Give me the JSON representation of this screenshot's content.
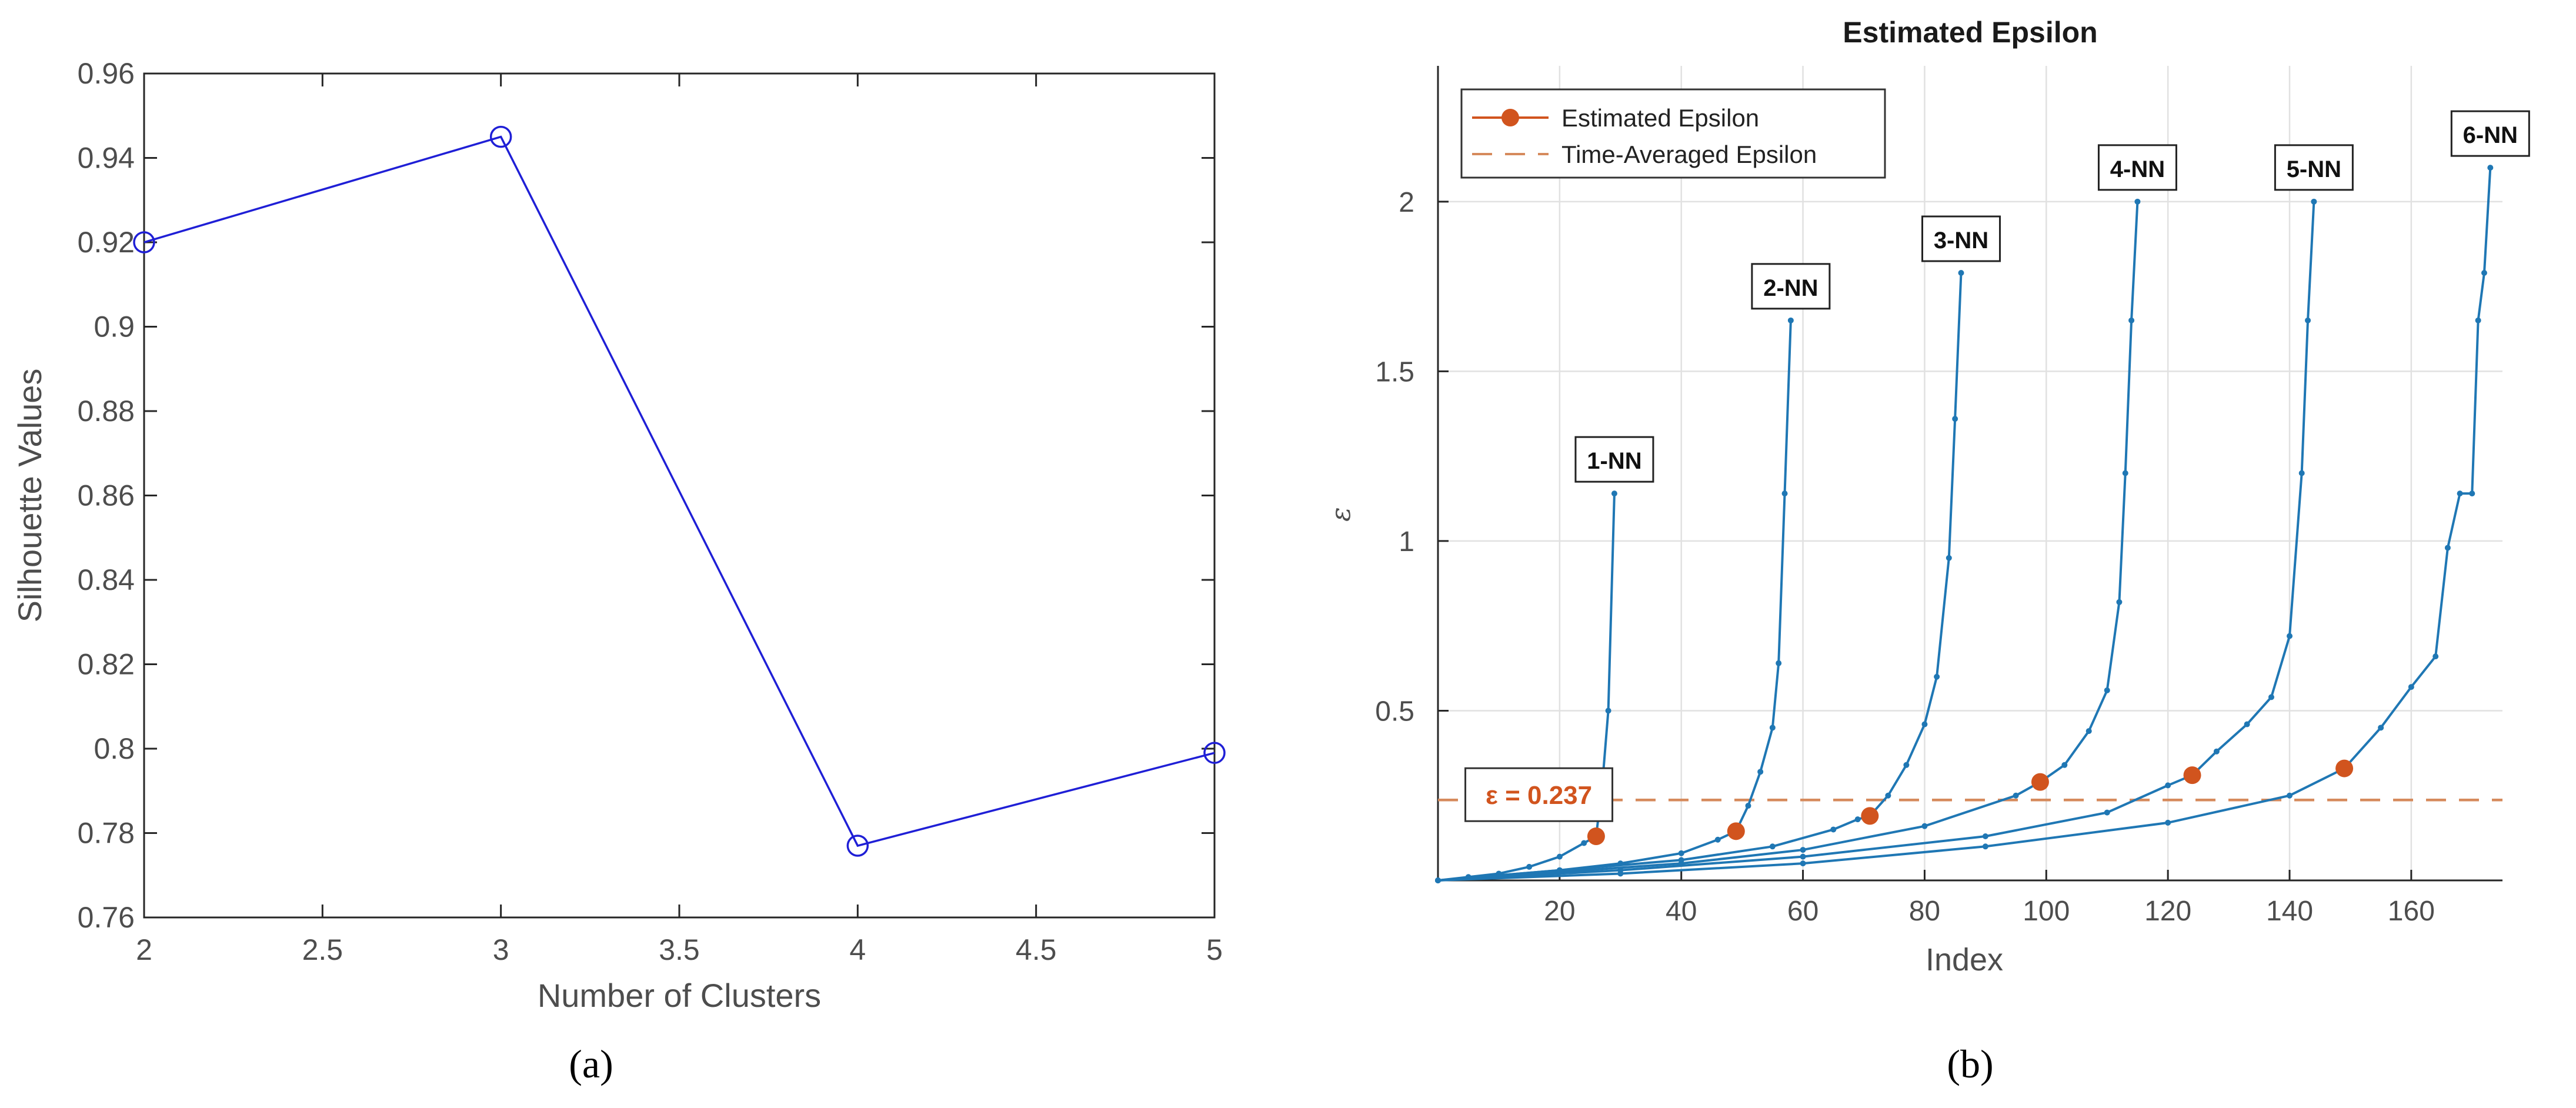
{
  "captions": {
    "a": "(a)",
    "b": "(b)"
  },
  "colors": {
    "silhouette_line": "#1f1fd6",
    "nn_curves": "#1f77b4",
    "estimated_epsilon": "#d1541e",
    "time_averaged": "#d68a5c",
    "grid": "#e1e1e1",
    "axis": "#262626",
    "tick_text": "#4d4d4d"
  },
  "chart_data": [
    {
      "type": "line",
      "panel": "a",
      "title": "",
      "xlabel": "Number of Clusters",
      "ylabel": "Silhouette Values",
      "xlim": [
        2,
        5
      ],
      "ylim": [
        0.76,
        0.96
      ],
      "grid": false,
      "xticks": [
        "2",
        "2.5",
        "3",
        "3.5",
        "4",
        "4.5",
        "5"
      ],
      "yticks": [
        "0.76",
        "0.78",
        "0.8",
        "0.82",
        "0.84",
        "0.86",
        "0.88",
        "0.9",
        "0.92",
        "0.94",
        "0.96"
      ],
      "marker": "circle",
      "series": [
        {
          "x": [
            2,
            3,
            4,
            5
          ],
          "values": [
            0.92,
            0.945,
            0.777,
            0.799
          ]
        }
      ]
    },
    {
      "type": "line",
      "panel": "b",
      "title": "Estimated Epsilon",
      "xlabel": "Index",
      "ylabel": "ε",
      "xlim": [
        0,
        175
      ],
      "ylim": [
        0,
        2.4
      ],
      "grid": true,
      "xticks": [
        "20",
        "40",
        "60",
        "80",
        "100",
        "120",
        "140",
        "160"
      ],
      "yticks": [
        "0.5",
        "1",
        "1.5",
        "2"
      ],
      "legend_position": "top-left",
      "legend": [
        "Estimated Epsilon",
        "Time-Averaged Epsilon"
      ],
      "time_averaged_epsilon": 0.237,
      "annotation": "ε = 0.237",
      "estimated_epsilon_points": {
        "x": [
          26,
          49,
          71,
          99,
          124,
          149
        ],
        "y": [
          0.13,
          0.145,
          0.19,
          0.29,
          0.31,
          0.33
        ]
      },
      "curve_labels": [
        {
          "text": "1-NN",
          "x": 29,
          "y": 1.14
        },
        {
          "text": "2-NN",
          "x": 58,
          "y": 1.65
        },
        {
          "text": "3-NN",
          "x": 86,
          "y": 1.79
        },
        {
          "text": "4-NN",
          "x": 115,
          "y": 2.0
        },
        {
          "text": "5-NN",
          "x": 144,
          "y": 2.0
        },
        {
          "text": "6-NN",
          "x": 173,
          "y": 2.1
        }
      ],
      "series": [
        {
          "x": [
            0,
            5,
            10,
            15,
            20,
            24,
            26,
            27,
            28,
            29
          ],
          "values": [
            0,
            0.01,
            0.02,
            0.04,
            0.07,
            0.11,
            0.13,
            0.28,
            0.5,
            1.14
          ]
        },
        {
          "x": [
            0,
            10,
            20,
            30,
            40,
            46,
            49,
            51,
            53,
            55,
            56,
            57,
            58
          ],
          "values": [
            0,
            0.015,
            0.03,
            0.05,
            0.08,
            0.12,
            0.145,
            0.22,
            0.32,
            0.45,
            0.64,
            1.14,
            1.65
          ]
        },
        {
          "x": [
            0,
            20,
            40,
            55,
            65,
            69,
            71,
            74,
            77,
            80,
            82,
            84,
            85,
            86
          ],
          "values": [
            0,
            0.03,
            0.06,
            0.1,
            0.15,
            0.18,
            0.19,
            0.25,
            0.34,
            0.46,
            0.6,
            0.95,
            1.36,
            1.79
          ]
        },
        {
          "x": [
            0,
            20,
            40,
            60,
            80,
            95,
            99,
            103,
            107,
            110,
            112,
            113,
            114,
            115
          ],
          "values": [
            0,
            0.025,
            0.05,
            0.09,
            0.16,
            0.25,
            0.29,
            0.34,
            0.44,
            0.56,
            0.82,
            1.2,
            1.65,
            2.0
          ]
        },
        {
          "x": [
            0,
            30,
            60,
            90,
            110,
            120,
            124,
            128,
            133,
            137,
            140,
            142,
            143,
            144
          ],
          "values": [
            0,
            0.03,
            0.07,
            0.13,
            0.2,
            0.28,
            0.31,
            0.38,
            0.46,
            0.54,
            0.72,
            1.2,
            1.65,
            2.0
          ]
        },
        {
          "x": [
            0,
            30,
            60,
            90,
            120,
            140,
            149,
            155,
            160,
            164,
            166,
            168,
            170,
            171,
            172,
            173
          ],
          "values": [
            0,
            0.02,
            0.05,
            0.1,
            0.17,
            0.25,
            0.33,
            0.45,
            0.57,
            0.66,
            0.98,
            1.14,
            1.14,
            1.65,
            1.79,
            2.1
          ]
        }
      ]
    }
  ]
}
